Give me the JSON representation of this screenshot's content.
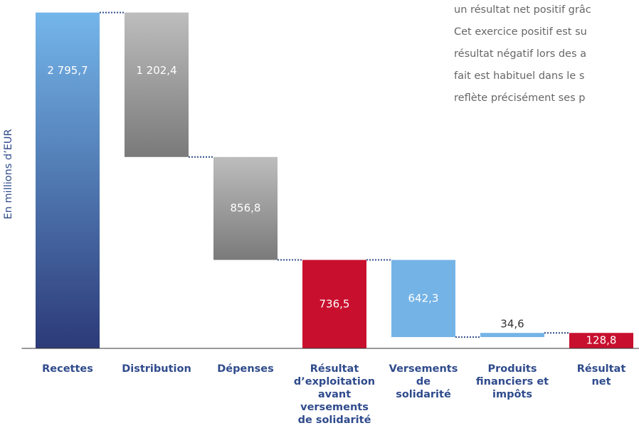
{
  "chart_data": {
    "type": "waterfall",
    "ylabel": "En millions d’EUR",
    "categories": [
      "Recettes",
      "Distribution",
      "Dépenses",
      "Résultat\nd’exploitation\navant\nversements\nde solidarité",
      "Versements\nde\nsolidarité",
      "Produits\nfinanciers et\nimpôts",
      "Résultat\nnet"
    ],
    "values": [
      2795.7,
      1202.4,
      856.8,
      736.5,
      642.3,
      34.6,
      128.8
    ],
    "value_labels": [
      "2 795,7",
      "1 202,4",
      "856,8",
      "736,5",
      "642,3",
      "34,6",
      "128,8"
    ],
    "measures": [
      "total",
      "decrease",
      "decrease",
      "total",
      "decrease",
      "increase",
      "total"
    ],
    "colors": [
      [
        "#74b6ea",
        "#2c3a78"
      ],
      [
        "#bdbdbd",
        "#7a7a7a"
      ],
      [
        "#bdbdbd",
        "#7a7a7a"
      ],
      "#c8102e",
      "#74b3e6",
      "#74b3e6",
      "#c8102e"
    ],
    "ylim": [
      0,
      2900
    ],
    "annotation": [
      "un résultat net positif grâc",
      "Cet exercice positif est su",
      "résultat négatif lors des a",
      "fait est habituel dans le s",
      "reflète précisément ses p"
    ]
  }
}
